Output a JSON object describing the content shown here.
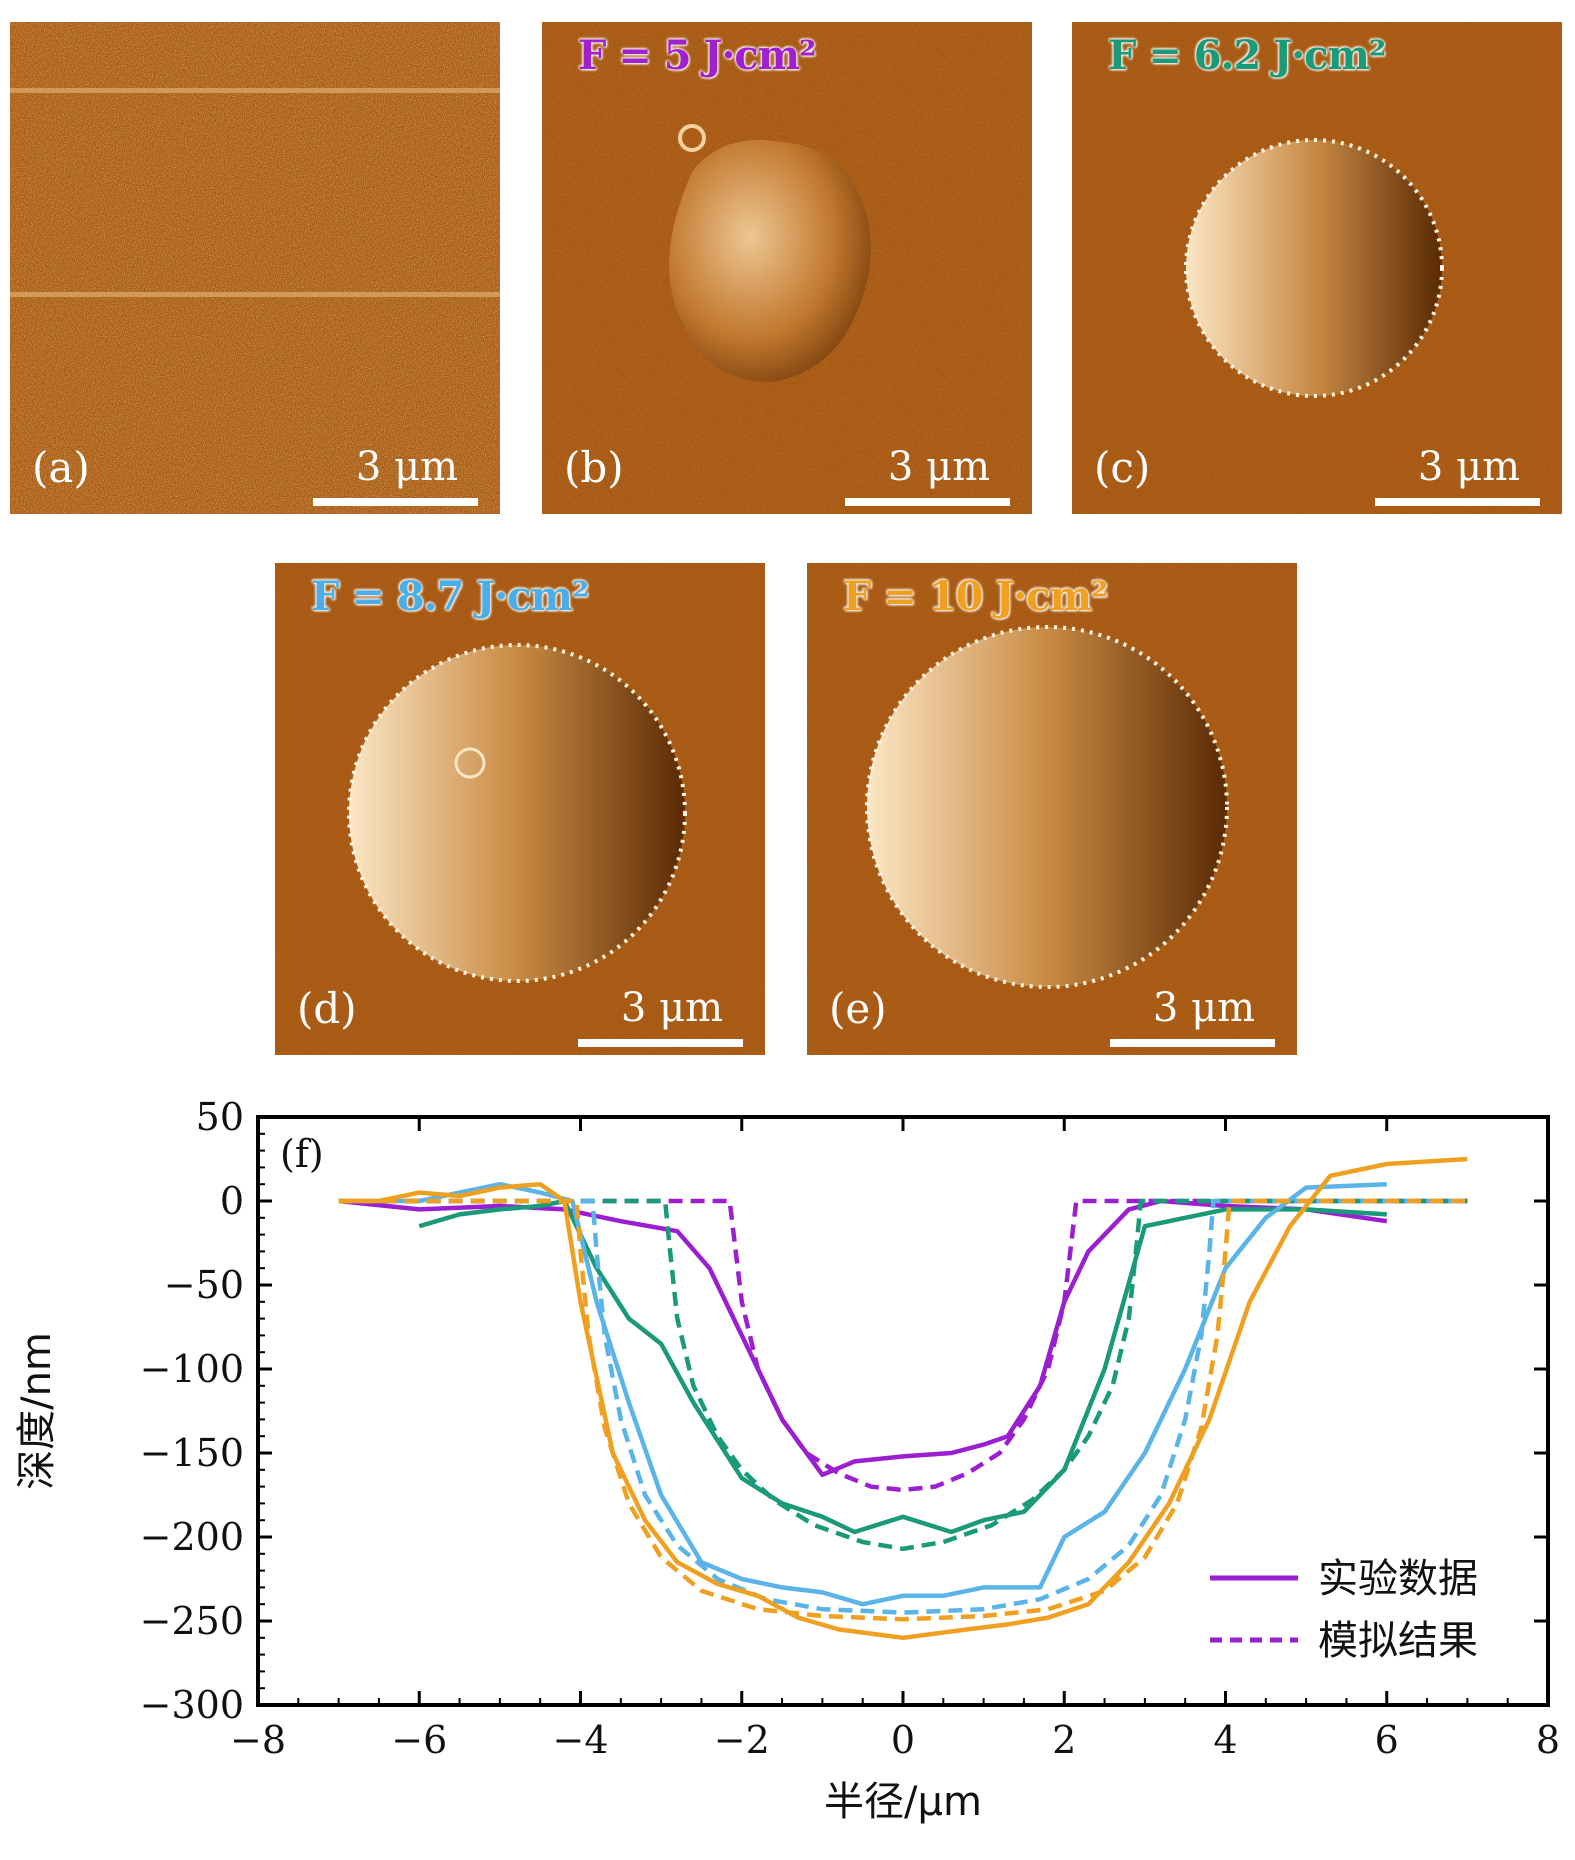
{
  "panels": [
    {
      "label": "(a)",
      "fluence": "",
      "color": "",
      "scale": "3 μm"
    },
    {
      "label": "(b)",
      "fluence": "F = 5 J·cm²",
      "color": "#a020d0",
      "scale": "3 μm"
    },
    {
      "label": "(c)",
      "fluence": "F = 6.2 J·cm²",
      "color": "#1a9a78",
      "scale": "3 μm"
    },
    {
      "label": "(d)",
      "fluence": "F = 8.7 J·cm²",
      "color": "#4aaee8",
      "scale": "3 μm"
    },
    {
      "label": "(e)",
      "fluence": "F = 10 J·cm²",
      "color": "#f0a020",
      "scale": "3 μm"
    }
  ],
  "chart_data": {
    "type": "line",
    "panel_label": "(f)",
    "xlabel": "半径/μm",
    "ylabel": "深度/nm",
    "xlim": [
      -8,
      8
    ],
    "ylim": [
      -300,
      50
    ],
    "xticks": [
      -8,
      -6,
      -4,
      -2,
      0,
      2,
      4,
      6,
      8
    ],
    "yticks": [
      50,
      0,
      -50,
      -100,
      -150,
      -200,
      -250,
      -300
    ],
    "legend": {
      "position": "lower-right",
      "solid": "实验数据",
      "dashed": "模拟结果"
    },
    "series": [
      {
        "fluence": "F = 5 J·cm²",
        "color": "#9a1fd0",
        "style": "solid",
        "x": [
          -7,
          -6,
          -5,
          -4.2,
          -3.5,
          -2.8,
          -2.4,
          -2,
          -1.5,
          -1,
          -0.6,
          0,
          0.6,
          1,
          1.3,
          1.7,
          2,
          2.3,
          2.8,
          3.2,
          4,
          5,
          6
        ],
        "y": [
          0,
          -5,
          -3,
          -5,
          -12,
          -18,
          -40,
          -80,
          -130,
          -163,
          -155,
          -152,
          -150,
          -145,
          -140,
          -110,
          -60,
          -30,
          -5,
          0,
          -3,
          -5,
          -12
        ]
      },
      {
        "fluence": "F = 5 J·cm²",
        "color": "#9a1fd0",
        "style": "dashed",
        "x": [
          -7,
          -2.15,
          -2.1,
          -2.0,
          -1.8,
          -1.5,
          -1.2,
          -0.8,
          -0.4,
          0,
          0.4,
          0.8,
          1.2,
          1.5,
          1.8,
          2.0,
          2.1,
          2.15,
          7
        ],
        "y": [
          0,
          0,
          -20,
          -60,
          -100,
          -130,
          -150,
          -162,
          -170,
          -172,
          -170,
          -162,
          -150,
          -130,
          -100,
          -60,
          -20,
          0,
          0
        ]
      },
      {
        "fluence": "F = 6.2 J·cm²",
        "color": "#1a9a78",
        "style": "solid",
        "x": [
          -6,
          -5.5,
          -5,
          -4.5,
          -4.2,
          -3.8,
          -3.4,
          -3,
          -2.6,
          -2,
          -1.5,
          -1,
          -0.6,
          0,
          0.6,
          1,
          1.5,
          2,
          2.5,
          3,
          4,
          5,
          6
        ],
        "y": [
          -15,
          -8,
          -5,
          -3,
          0,
          -40,
          -70,
          -85,
          -120,
          -165,
          -180,
          -188,
          -197,
          -188,
          -197,
          -190,
          -185,
          -160,
          -100,
          -15,
          -5,
          -5,
          -8
        ]
      },
      {
        "fluence": "F = 6.2 J·cm²",
        "color": "#1a9a78",
        "style": "dashed",
        "x": [
          -7,
          -2.95,
          -2.9,
          -2.8,
          -2.6,
          -2.3,
          -2,
          -1.6,
          -1.1,
          -0.5,
          0,
          0.5,
          1.1,
          1.6,
          2,
          2.3,
          2.6,
          2.8,
          2.9,
          2.95,
          7
        ],
        "y": [
          0,
          0,
          -25,
          -70,
          -110,
          -140,
          -160,
          -178,
          -193,
          -203,
          -207,
          -203,
          -193,
          -178,
          -160,
          -140,
          -110,
          -70,
          -25,
          0,
          0
        ]
      },
      {
        "fluence": "F = 8.7 J·cm²",
        "color": "#5ab4e8",
        "style": "solid",
        "x": [
          -7,
          -6,
          -5,
          -4.5,
          -4.1,
          -3.8,
          -3.4,
          -3,
          -2.5,
          -2,
          -1.5,
          -1,
          -0.5,
          0,
          0.5,
          1,
          1.7,
          2,
          2.5,
          3,
          3.5,
          4,
          4.5,
          5,
          6
        ],
        "y": [
          0,
          0,
          10,
          5,
          0,
          -60,
          -120,
          -175,
          -215,
          -225,
          -230,
          -233,
          -240,
          -235,
          -235,
          -230,
          -230,
          -200,
          -185,
          -150,
          -100,
          -40,
          -10,
          8,
          10
        ]
      },
      {
        "fluence": "F = 8.7 J·cm²",
        "color": "#5ab4e8",
        "style": "dashed",
        "x": [
          -7,
          -3.85,
          -3.8,
          -3.7,
          -3.5,
          -3.2,
          -2.8,
          -2.3,
          -1.7,
          -1,
          0,
          1,
          1.7,
          2.3,
          2.8,
          3.2,
          3.5,
          3.7,
          3.8,
          3.85,
          7
        ],
        "y": [
          0,
          0,
          -30,
          -80,
          -130,
          -175,
          -205,
          -225,
          -237,
          -243,
          -245,
          -243,
          -237,
          -225,
          -205,
          -175,
          -130,
          -80,
          -30,
          0,
          0
        ]
      },
      {
        "fluence": "F = 10 J·cm²",
        "color": "#f0a020",
        "style": "solid",
        "x": [
          -7,
          -6.5,
          -6,
          -5.5,
          -5,
          -4.5,
          -4.2,
          -4,
          -3.6,
          -3.2,
          -2.8,
          -2.3,
          -1.8,
          -1.3,
          -0.8,
          0,
          0.8,
          1.3,
          1.8,
          2.3,
          2.8,
          3.3,
          3.8,
          4.3,
          4.8,
          5.3,
          6,
          7
        ],
        "y": [
          0,
          0,
          5,
          3,
          8,
          10,
          0,
          -60,
          -150,
          -190,
          -215,
          -228,
          -235,
          -248,
          -255,
          -260,
          -255,
          -252,
          -248,
          -240,
          -215,
          -180,
          -130,
          -60,
          -15,
          15,
          22,
          25
        ]
      },
      {
        "fluence": "F = 10 J·cm²",
        "color": "#f0a020",
        "style": "dashed",
        "x": [
          -7,
          -4.05,
          -4.0,
          -3.9,
          -3.7,
          -3.4,
          -3.0,
          -2.5,
          -1.8,
          -1,
          0,
          1,
          1.8,
          2.5,
          3.0,
          3.4,
          3.7,
          3.9,
          4.0,
          4.05,
          7
        ],
        "y": [
          0,
          0,
          -30,
          -80,
          -135,
          -180,
          -212,
          -232,
          -243,
          -247,
          -249,
          -247,
          -243,
          -232,
          -212,
          -180,
          -135,
          -80,
          -30,
          0,
          0
        ]
      }
    ]
  }
}
